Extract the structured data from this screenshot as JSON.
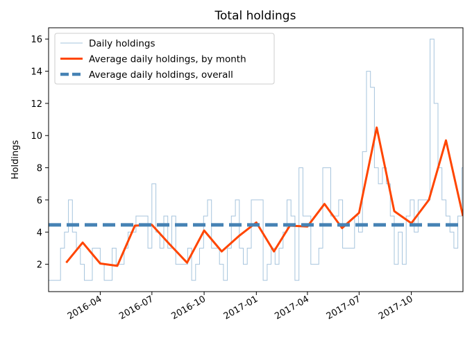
{
  "chart_data": {
    "type": "line",
    "title": "Total holdings",
    "xlabel": "",
    "ylabel": "Holdings",
    "x_range": [
      "2016-01-01",
      "2017-12-31"
    ],
    "ylim": [
      0.3,
      16.7
    ],
    "x_ticks": [
      "2016-04",
      "2016-07",
      "2016-10",
      "2017-01",
      "2017-04",
      "2017-07",
      "2017-10"
    ],
    "y_ticks": [
      2,
      4,
      6,
      8,
      10,
      12,
      14,
      16
    ],
    "grid": false,
    "legend_position": "top-left",
    "series": [
      {
        "name": "Daily holdings",
        "color": "#a6c4dd",
        "style": "thin-step",
        "points": [
          [
            "2016-01-01",
            1
          ],
          [
            "2016-01-08",
            1
          ],
          [
            "2016-01-15",
            1
          ],
          [
            "2016-01-22",
            3
          ],
          [
            "2016-01-29",
            4
          ],
          [
            "2016-02-05",
            6
          ],
          [
            "2016-02-12",
            4
          ],
          [
            "2016-02-19",
            3
          ],
          [
            "2016-02-26",
            2
          ],
          [
            "2016-03-04",
            1
          ],
          [
            "2016-03-11",
            1
          ],
          [
            "2016-03-18",
            3
          ],
          [
            "2016-03-25",
            3
          ],
          [
            "2016-04-01",
            2
          ],
          [
            "2016-04-08",
            1
          ],
          [
            "2016-04-15",
            1
          ],
          [
            "2016-04-22",
            3
          ],
          [
            "2016-04-29",
            2
          ],
          [
            "2016-05-06",
            2
          ],
          [
            "2016-05-13",
            3
          ],
          [
            "2016-05-20",
            4
          ],
          [
            "2016-05-27",
            4
          ],
          [
            "2016-06-03",
            5
          ],
          [
            "2016-06-10",
            5
          ],
          [
            "2016-06-17",
            5
          ],
          [
            "2016-06-24",
            3
          ],
          [
            "2016-07-01",
            7
          ],
          [
            "2016-07-08",
            4
          ],
          [
            "2016-07-15",
            3
          ],
          [
            "2016-07-22",
            5
          ],
          [
            "2016-07-29",
            3
          ],
          [
            "2016-08-05",
            5
          ],
          [
            "2016-08-12",
            2
          ],
          [
            "2016-08-19",
            2
          ],
          [
            "2016-08-26",
            2
          ],
          [
            "2016-09-02",
            3
          ],
          [
            "2016-09-09",
            1
          ],
          [
            "2016-09-16",
            2
          ],
          [
            "2016-09-23",
            3
          ],
          [
            "2016-09-30",
            5
          ],
          [
            "2016-10-07",
            6
          ],
          [
            "2016-10-14",
            3
          ],
          [
            "2016-10-21",
            3
          ],
          [
            "2016-10-28",
            2
          ],
          [
            "2016-11-04",
            1
          ],
          [
            "2016-11-11",
            3
          ],
          [
            "2016-11-18",
            5
          ],
          [
            "2016-11-25",
            6
          ],
          [
            "2016-12-02",
            3
          ],
          [
            "2016-12-09",
            2
          ],
          [
            "2016-12-16",
            3
          ],
          [
            "2016-12-23",
            6
          ],
          [
            "2016-12-30",
            6
          ],
          [
            "2017-01-06",
            6
          ],
          [
            "2017-01-13",
            1
          ],
          [
            "2017-01-20",
            2
          ],
          [
            "2017-01-27",
            3
          ],
          [
            "2017-02-03",
            2
          ],
          [
            "2017-02-10",
            3
          ],
          [
            "2017-02-17",
            4
          ],
          [
            "2017-02-24",
            6
          ],
          [
            "2017-03-03",
            5
          ],
          [
            "2017-03-10",
            1
          ],
          [
            "2017-03-17",
            8
          ],
          [
            "2017-03-24",
            5
          ],
          [
            "2017-03-31",
            5
          ],
          [
            "2017-04-07",
            2
          ],
          [
            "2017-04-14",
            2
          ],
          [
            "2017-04-21",
            3
          ],
          [
            "2017-04-28",
            8
          ],
          [
            "2017-05-05",
            8
          ],
          [
            "2017-05-12",
            5
          ],
          [
            "2017-05-19",
            5
          ],
          [
            "2017-05-26",
            6
          ],
          [
            "2017-06-02",
            3
          ],
          [
            "2017-06-09",
            3
          ],
          [
            "2017-06-16",
            3
          ],
          [
            "2017-06-23",
            5
          ],
          [
            "2017-06-30",
            4
          ],
          [
            "2017-07-07",
            9
          ],
          [
            "2017-07-14",
            14
          ],
          [
            "2017-07-21",
            13
          ],
          [
            "2017-07-28",
            8
          ],
          [
            "2017-08-04",
            7
          ],
          [
            "2017-08-11",
            8
          ],
          [
            "2017-08-18",
            7
          ],
          [
            "2017-08-25",
            5
          ],
          [
            "2017-09-01",
            2
          ],
          [
            "2017-09-08",
            4
          ],
          [
            "2017-09-15",
            2
          ],
          [
            "2017-09-22",
            5
          ],
          [
            "2017-09-29",
            6
          ],
          [
            "2017-10-06",
            4
          ],
          [
            "2017-10-13",
            6
          ],
          [
            "2017-10-20",
            6
          ],
          [
            "2017-10-27",
            6
          ],
          [
            "2017-11-03",
            16
          ],
          [
            "2017-11-10",
            12
          ],
          [
            "2017-11-17",
            8
          ],
          [
            "2017-11-24",
            6
          ],
          [
            "2017-12-01",
            5
          ],
          [
            "2017-12-08",
            4
          ],
          [
            "2017-12-15",
            3
          ],
          [
            "2017-12-22",
            5
          ],
          [
            "2017-12-29",
            8
          ]
        ]
      },
      {
        "name": "Average daily holdings, by month",
        "color": "#ff4500",
        "style": "thick",
        "points": [
          [
            "2016-02-01",
            2.1
          ],
          [
            "2016-03-01",
            3.35
          ],
          [
            "2016-04-01",
            2.05
          ],
          [
            "2016-05-01",
            1.9
          ],
          [
            "2016-06-01",
            4.4
          ],
          [
            "2016-07-01",
            4.45
          ],
          [
            "2016-08-01",
            3.25
          ],
          [
            "2016-09-01",
            2.1
          ],
          [
            "2016-10-01",
            4.1
          ],
          [
            "2016-11-01",
            2.8
          ],
          [
            "2016-12-01",
            3.75
          ],
          [
            "2017-01-01",
            4.6
          ],
          [
            "2017-02-01",
            2.8
          ],
          [
            "2017-03-01",
            4.4
          ],
          [
            "2017-04-01",
            4.35
          ],
          [
            "2017-05-01",
            5.75
          ],
          [
            "2017-06-01",
            4.25
          ],
          [
            "2017-07-01",
            5.2
          ],
          [
            "2017-08-01",
            10.5
          ],
          [
            "2017-09-01",
            5.3
          ],
          [
            "2017-10-01",
            4.55
          ],
          [
            "2017-11-01",
            6.0
          ],
          [
            "2017-12-01",
            9.7
          ],
          [
            "2017-12-31",
            5.0
          ]
        ]
      },
      {
        "name": "Average daily holdings, overall",
        "color": "#4682b4",
        "style": "dashed",
        "points": [
          [
            "2016-01-01",
            4.45
          ],
          [
            "2017-12-31",
            4.45
          ]
        ]
      }
    ]
  }
}
